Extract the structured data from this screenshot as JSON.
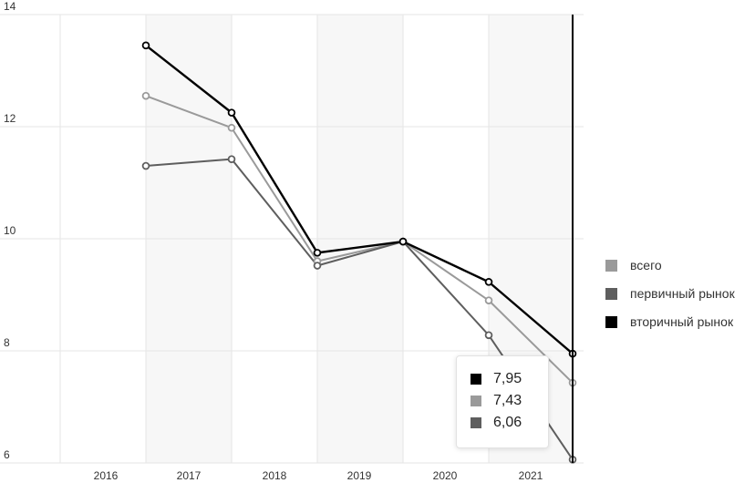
{
  "chart_data": {
    "type": "line",
    "categories": [
      "2016",
      "2017",
      "2018",
      "2019",
      "2020",
      "2021"
    ],
    "y_ticks": [
      "14",
      "12",
      "10",
      "8",
      "6"
    ],
    "ylim": [
      6,
      14
    ],
    "grid": true,
    "legend_position": "right",
    "series": [
      {
        "name": "всего",
        "color": "#9a9a9a",
        "values": [
          12.55,
          11.98,
          9.6,
          9.95,
          8.9,
          7.43
        ]
      },
      {
        "name": "первичный рынок",
        "color": "#5e5e5e",
        "values": [
          11.3,
          11.42,
          9.52,
          9.95,
          8.28,
          6.06
        ]
      },
      {
        "name": "вторичный рынок",
        "color": "#000000",
        "values": [
          13.45,
          12.25,
          9.75,
          9.95,
          9.23,
          7.95
        ]
      }
    ],
    "tooltip": {
      "rows": [
        {
          "value": "7,95",
          "color": "#000000"
        },
        {
          "value": "7,43",
          "color": "#9a9a9a"
        },
        {
          "value": "6,06",
          "color": "#5e5e5e"
        }
      ]
    }
  }
}
